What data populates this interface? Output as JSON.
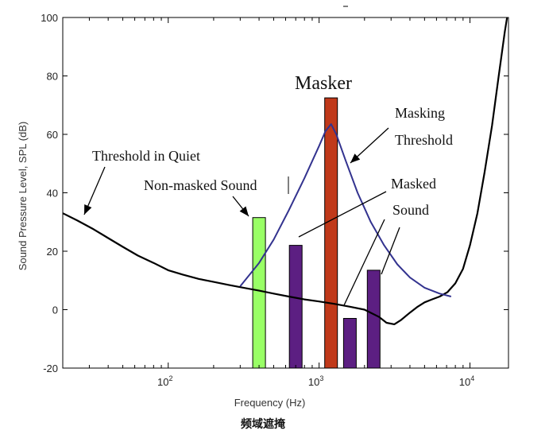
{
  "chart_data": {
    "type": "bar",
    "title": "",
    "xlabel": "Frequency (Hz)",
    "ylabel": "Sound Pressure Level, SPL (dB)",
    "caption": "频域遮掩",
    "xscale": "log",
    "xlim": [
      20,
      18000
    ],
    "ylim": [
      -20,
      100
    ],
    "yticks": [
      -20,
      0,
      20,
      40,
      60,
      80,
      100
    ],
    "xticks": [
      {
        "value": 100,
        "base": "10",
        "exp": "2"
      },
      {
        "value": 1000,
        "base": "10",
        "exp": "3"
      },
      {
        "value": 10000,
        "base": "10",
        "exp": "4"
      }
    ],
    "grid": false,
    "series": [
      {
        "name": "Threshold in Quiet",
        "kind": "line",
        "color": "#000000",
        "x": [
          20,
          25,
          32,
          40,
          50,
          63,
          80,
          100,
          125,
          160,
          200,
          250,
          315,
          400,
          500,
          630,
          800,
          1000,
          1250,
          1600,
          2000,
          2500,
          2800,
          3150,
          3500,
          4000,
          4500,
          5000,
          5600,
          6300,
          7100,
          8000,
          9000,
          10000,
          11200,
          12500,
          14000,
          15500,
          17000,
          18000
        ],
        "y": [
          33,
          30.5,
          27.5,
          24.5,
          21.5,
          18.5,
          16,
          13.5,
          12,
          10.5,
          9.5,
          8.5,
          7.5,
          6.5,
          5.5,
          4.5,
          3.5,
          2.8,
          2,
          1,
          0,
          -2.5,
          -4.5,
          -5,
          -3.5,
          -1,
          1,
          2.5,
          3.5,
          4.5,
          6,
          9,
          14,
          22,
          33,
          47,
          63,
          80,
          95,
          103
        ]
      },
      {
        "name": "Masking Threshold",
        "kind": "line",
        "color": "#33338f",
        "x": [
          300,
          400,
          500,
          630,
          800,
          1000,
          1100,
          1200,
          1300,
          1500,
          1800,
          2200,
          2700,
          3300,
          4000,
          5000,
          6300,
          7500
        ],
        "y": [
          8,
          16,
          24,
          34,
          45,
          56,
          61,
          63.5,
          60,
          51,
          40,
          30,
          22,
          15.5,
          11,
          7.5,
          5.5,
          4.5
        ]
      }
    ],
    "bars": [
      {
        "name": "Non-masked Sound",
        "freq": 400,
        "value": 31.5,
        "color": "#99ff66"
      },
      {
        "name": "Masked Sound",
        "freq": 700,
        "value": 22,
        "color": "#5c1f82"
      },
      {
        "name": "Masker",
        "freq": 1200,
        "value": 72.5,
        "color": "#c0391a"
      },
      {
        "name": "Masked Sound",
        "freq": 1600,
        "value": -3,
        "color": "#5c1f82"
      },
      {
        "name": "Masked Sound",
        "freq": 2300,
        "value": 13.5,
        "color": "#5c1f82"
      }
    ],
    "annotations": [
      {
        "id": "quiet",
        "text": "Threshold in Quiet"
      },
      {
        "id": "nonmasked",
        "text": "Non-masked Sound"
      },
      {
        "id": "masker",
        "text": "Masker"
      },
      {
        "id": "masking1",
        "text": "Masking"
      },
      {
        "id": "masking2",
        "text": "Threshold"
      },
      {
        "id": "masked1",
        "text": "Masked"
      },
      {
        "id": "masked2",
        "text": "Sound"
      }
    ]
  }
}
